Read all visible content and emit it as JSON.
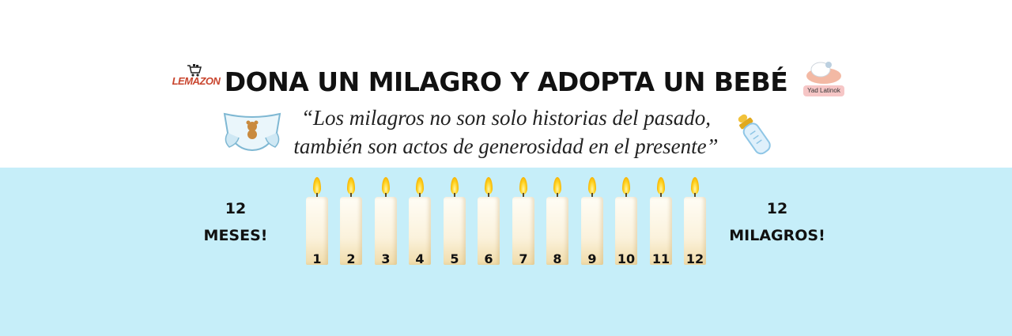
{
  "header": {
    "title": "DONA UN MILAGRO Y ADOPTA UN BEBÉ",
    "quote_line1": "“Los milagros no son solo historias del pasado,",
    "quote_line2": "también son actos de generosidad en el presente”"
  },
  "logos": {
    "left_text": "LEMAZON",
    "right_text": "Yad Latinok"
  },
  "left_label": {
    "line1": "12",
    "line2": "MESES!"
  },
  "right_label": {
    "line1": "12",
    "line2": "MILAGROS!"
  },
  "candles": [
    "1",
    "2",
    "3",
    "4",
    "5",
    "6",
    "7",
    "8",
    "9",
    "10",
    "11",
    "12"
  ],
  "colors": {
    "band": "#c6eef9",
    "flame": "#ffd21f",
    "candle": "#fbf2dc",
    "logo_red": "#c9452e"
  },
  "icons": [
    "cart-icon",
    "diaper-icon",
    "baby-bottle-icon",
    "baby-logo-icon"
  ]
}
